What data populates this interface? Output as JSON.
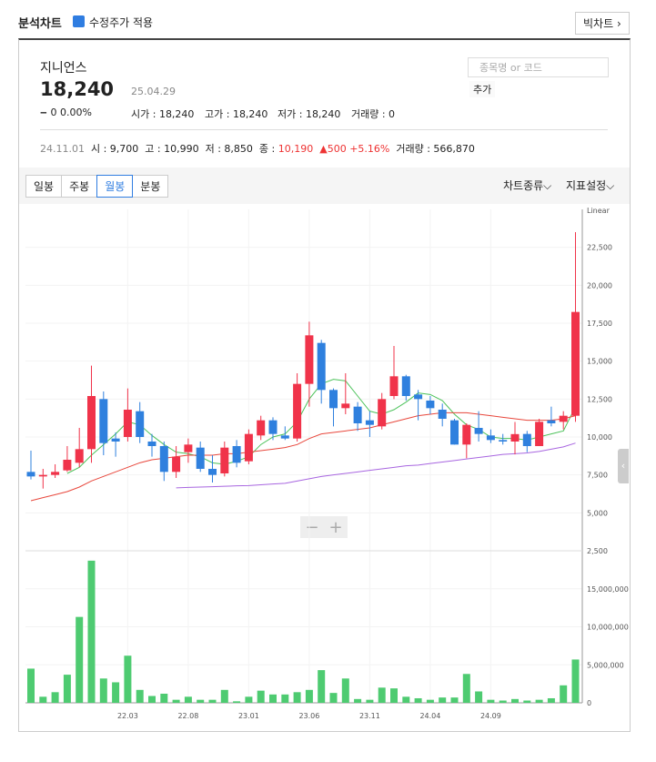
{
  "header": {
    "title": "분석차트",
    "checkbox": "수정주가 적용",
    "big_chart": "빅차트"
  },
  "stock": {
    "name": "지니언스",
    "price": "18,240",
    "date": "25.04.29",
    "change": "0 0.00%",
    "stats": [
      "시가 : 18,240",
      "고가 : 18,240",
      "저가 : 18,240",
      "거래량 : 0"
    ],
    "search_placeholder": "종목명 or 코드",
    "add": "추가"
  },
  "info": {
    "date": "24.11.01",
    "open": "시 : 9,700",
    "high": "고 : 10,990",
    "low": "저 : 8,850",
    "close_label": "종 : ",
    "close": "10,190",
    "change": "▲500 +5.16%",
    "volume": "거래량 : 566,870"
  },
  "toolbar": {
    "tabs": [
      "일봉",
      "주봉",
      "월봉",
      "분봉"
    ],
    "selected": 2,
    "chart_type": "차트종류",
    "indicators": "지표설정"
  },
  "chart_data": [
    {
      "type": "candlestick",
      "scale_label": "Linear",
      "up_color": "#f0334a",
      "down_color": "#2f80de",
      "grid": true,
      "categories": [
        null,
        null,
        null,
        null,
        null,
        null,
        null,
        null,
        "22.03",
        null,
        null,
        null,
        null,
        "22.08",
        null,
        null,
        null,
        null,
        "23.01",
        null,
        null,
        null,
        null,
        "23.06",
        null,
        null,
        null,
        null,
        "23.11",
        null,
        null,
        null,
        null,
        "24.04",
        null,
        null,
        null,
        null,
        "24.09",
        null,
        null,
        null,
        null,
        null,
        null,
        null
      ],
      "open": [
        7700,
        7400,
        7500,
        7800,
        8300,
        9200,
        12500,
        9900,
        10000,
        11700,
        9700,
        9400,
        7700,
        9000,
        9300,
        7900,
        7600,
        9400,
        8400,
        10100,
        11100,
        10100,
        9900,
        13500,
        16200,
        13100,
        11900,
        12000,
        11100,
        10700,
        12700,
        14000,
        12800,
        12400,
        11800,
        11100,
        9500,
        10600,
        10100,
        9800,
        9700,
        10200,
        9400,
        11100,
        11000,
        11400
      ],
      "high": [
        9100,
        7900,
        8200,
        9400,
        10600,
        14700,
        13000,
        10300,
        13200,
        12300,
        10200,
        9700,
        9400,
        9900,
        9700,
        8800,
        9700,
        9800,
        10500,
        11400,
        11300,
        10700,
        14200,
        17600,
        16400,
        13200,
        14200,
        12300,
        11700,
        12900,
        16000,
        14100,
        13100,
        12700,
        12200,
        11200,
        10900,
        11700,
        10500,
        10200,
        10990,
        10400,
        11200,
        12000,
        11700,
        23500
      ],
      "low": [
        7200,
        6600,
        7300,
        7700,
        8000,
        8300,
        8800,
        8700,
        9700,
        9600,
        8700,
        7100,
        7300,
        8300,
        7700,
        7000,
        7400,
        8000,
        8200,
        9800,
        9800,
        9800,
        9700,
        12000,
        12200,
        10700,
        11500,
        10400,
        10000,
        10500,
        12500,
        12400,
        11100,
        11500,
        10700,
        9500,
        8600,
        9700,
        9600,
        9500,
        8850,
        9000,
        9400,
        10700,
        10500,
        11000
      ],
      "close": [
        7400,
        7500,
        7700,
        8500,
        9200,
        12700,
        9600,
        9700,
        11800,
        10000,
        9400,
        7700,
        8700,
        9500,
        7900,
        7500,
        9300,
        8300,
        10200,
        11100,
        10200,
        9900,
        13500,
        16700,
        13100,
        11900,
        12200,
        10900,
        10800,
        12500,
        14000,
        12700,
        12500,
        11900,
        11200,
        9500,
        10800,
        10200,
        9800,
        9700,
        10190,
        9400,
        11000,
        10900,
        11400,
        18240
      ],
      "moving_averages": [
        {
          "color": "#4cc25a",
          "values": [
            null,
            null,
            null,
            7600,
            8000,
            8800,
            9500,
            10200,
            11000,
            10800,
            10100,
            9500,
            9000,
            8900,
            8700,
            8300,
            8200,
            8400,
            8700,
            9500,
            10000,
            10200,
            11000,
            12500,
            13500,
            13800,
            13700,
            12700,
            11700,
            11500,
            11800,
            12300,
            12900,
            12800,
            12400,
            11500,
            10800,
            10500,
            10000,
            9900,
            9900,
            9800,
            10000,
            10200,
            10400,
            12000
          ]
        },
        {
          "color": "#e8473c",
          "values": [
            5800,
            6000,
            6200,
            6400,
            6700,
            7100,
            7400,
            7700,
            8000,
            8300,
            8500,
            8600,
            8700,
            8800,
            8800,
            8800,
            8900,
            8900,
            9000,
            9100,
            9200,
            9300,
            9500,
            9900,
            10200,
            10300,
            10400,
            10500,
            10600,
            10800,
            11000,
            11200,
            11400,
            11500,
            11600,
            11600,
            11600,
            11500,
            11400,
            11300,
            11200,
            11100,
            11100,
            11100,
            11200,
            11400
          ]
        },
        {
          "color": "#a866e0",
          "values": [
            null,
            null,
            null,
            null,
            null,
            null,
            null,
            null,
            null,
            null,
            null,
            null,
            6650,
            6680,
            6700,
            6720,
            6750,
            6780,
            6800,
            6850,
            6900,
            6950,
            7100,
            7250,
            7400,
            7500,
            7600,
            7700,
            7800,
            7900,
            8000,
            8100,
            8150,
            8250,
            8350,
            8450,
            8550,
            8650,
            8750,
            8850,
            8900,
            8950,
            9050,
            9200,
            9350,
            9600
          ]
        }
      ],
      "ylim": [
        2500,
        25000
      ],
      "yticks": [
        {
          "value": 2500,
          "label": "2,500"
        },
        {
          "value": 5000,
          "label": "5,000"
        },
        {
          "value": 7500,
          "label": "7,500"
        },
        {
          "value": 10000,
          "label": "10,000"
        },
        {
          "value": 12500,
          "label": "12,500"
        },
        {
          "value": 15000,
          "label": "15,000"
        },
        {
          "value": 17500,
          "label": "17,500"
        },
        {
          "value": 20000,
          "label": "20,000"
        },
        {
          "value": 22500,
          "label": "22,500"
        }
      ]
    },
    {
      "type": "bar",
      "color": "#4ecb71",
      "values": [
        4500000,
        800000,
        1400000,
        3700000,
        11300000,
        18700000,
        3200000,
        2700000,
        6200000,
        1700000,
        900000,
        1200000,
        400000,
        800000,
        400000,
        400000,
        1700000,
        200000,
        800000,
        1600000,
        1100000,
        1100000,
        1400000,
        1700000,
        4300000,
        1300000,
        3200000,
        500000,
        400000,
        2000000,
        1900000,
        800000,
        600000,
        400000,
        700000,
        700000,
        3800000,
        1500000,
        400000,
        300000,
        500000,
        300000,
        400000,
        600000,
        2300000,
        5700000
      ],
      "ylim": [
        0,
        20000000
      ],
      "yticks": [
        0,
        {
          "value": 5000000,
          "label": "5,000,000"
        },
        {
          "value": 10000000,
          "label": "10,000,000"
        },
        {
          "value": 15000000,
          "label": "15,000,000"
        }
      ]
    }
  ]
}
